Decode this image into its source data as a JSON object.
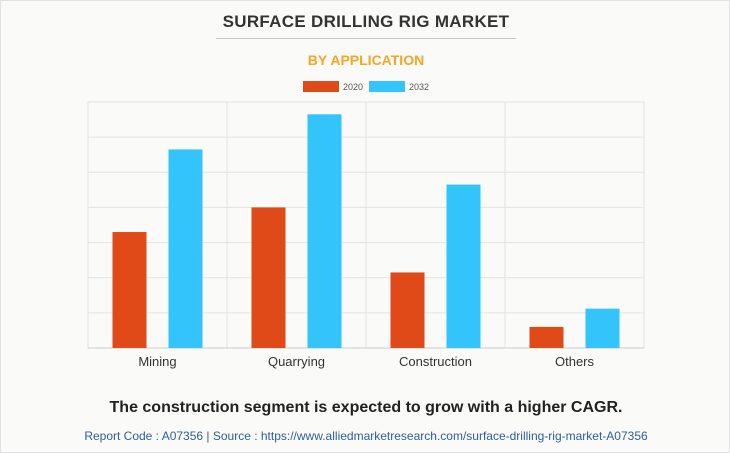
{
  "title": "SURFACE DRILLING RIG MARKET",
  "subtitle": "BY APPLICATION",
  "colors": {
    "series_2020": "#e04a18",
    "series_2032": "#33c4fb",
    "subtitle": "#f5a623",
    "footer": "#2e5e99"
  },
  "chart_data": {
    "type": "bar",
    "categories": [
      "Mining",
      "Quarrying",
      "Construction",
      "Others"
    ],
    "series": [
      {
        "name": "2020",
        "values": [
          3.3,
          4.0,
          2.15,
          0.6
        ]
      },
      {
        "name": "2032",
        "values": [
          5.65,
          6.65,
          4.65,
          1.12
        ]
      }
    ],
    "ylim": [
      0,
      7
    ],
    "grid": true,
    "legend": "top-center",
    "xlabel": "",
    "ylabel": ""
  },
  "tagline": "The construction segment is expected to grow with a higher CAGR.",
  "footer": {
    "text": "Report Code : A07356  |  Source : https://www.alliedmarketresearch.com/surface-drilling-rig-market-A07356"
  }
}
